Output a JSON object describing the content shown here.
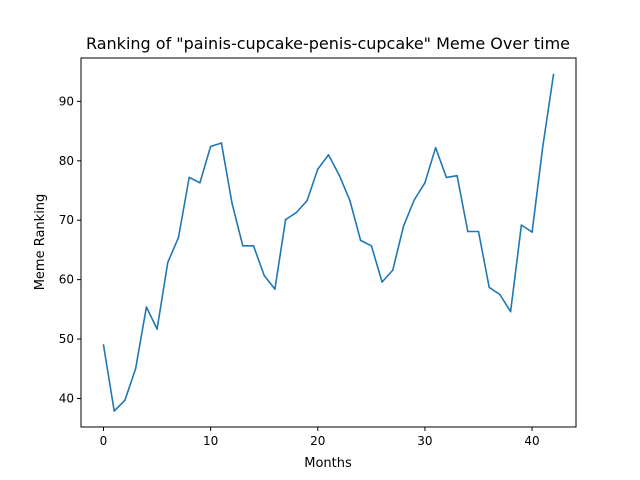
{
  "chart_data": {
    "type": "line",
    "title": "Ranking of \"painis-cupcake-penis-cupcake\" Meme Over time",
    "xlabel": "Months",
    "ylabel": "Meme Ranking",
    "xlim": [
      -2.1,
      44.1
    ],
    "ylim": [
      35.2,
      97.3
    ],
    "xticks": [
      "0",
      "10",
      "20",
      "30",
      "40"
    ],
    "yticks": [
      "40",
      "50",
      "60",
      "70",
      "80",
      "90"
    ],
    "grid": false,
    "series": [
      {
        "color": "#1f77b4",
        "x": [
          0,
          1,
          2,
          3,
          4,
          5,
          6,
          7,
          8,
          9,
          10,
          11,
          12,
          13,
          14,
          15,
          16,
          17,
          18,
          19,
          20,
          21,
          22,
          23,
          24,
          25,
          26,
          27,
          28,
          29,
          30,
          31,
          32,
          33,
          34,
          35,
          36,
          37,
          38,
          39,
          40,
          41,
          42
        ],
        "y": [
          49.0,
          37.9,
          39.7,
          45.0,
          55.4,
          51.7,
          62.9,
          67.1,
          77.2,
          76.3,
          82.4,
          83.0,
          72.8,
          65.7,
          65.7,
          60.7,
          58.4,
          70.1,
          71.3,
          73.3,
          78.6,
          81.0,
          77.6,
          73.3,
          66.6,
          65.7,
          59.6,
          61.6,
          69.0,
          73.4,
          76.3,
          82.2,
          77.2,
          77.5,
          68.1,
          68.1,
          58.7,
          57.5,
          54.6,
          69.2,
          68.0,
          82.4,
          94.5
        ]
      }
    ]
  }
}
